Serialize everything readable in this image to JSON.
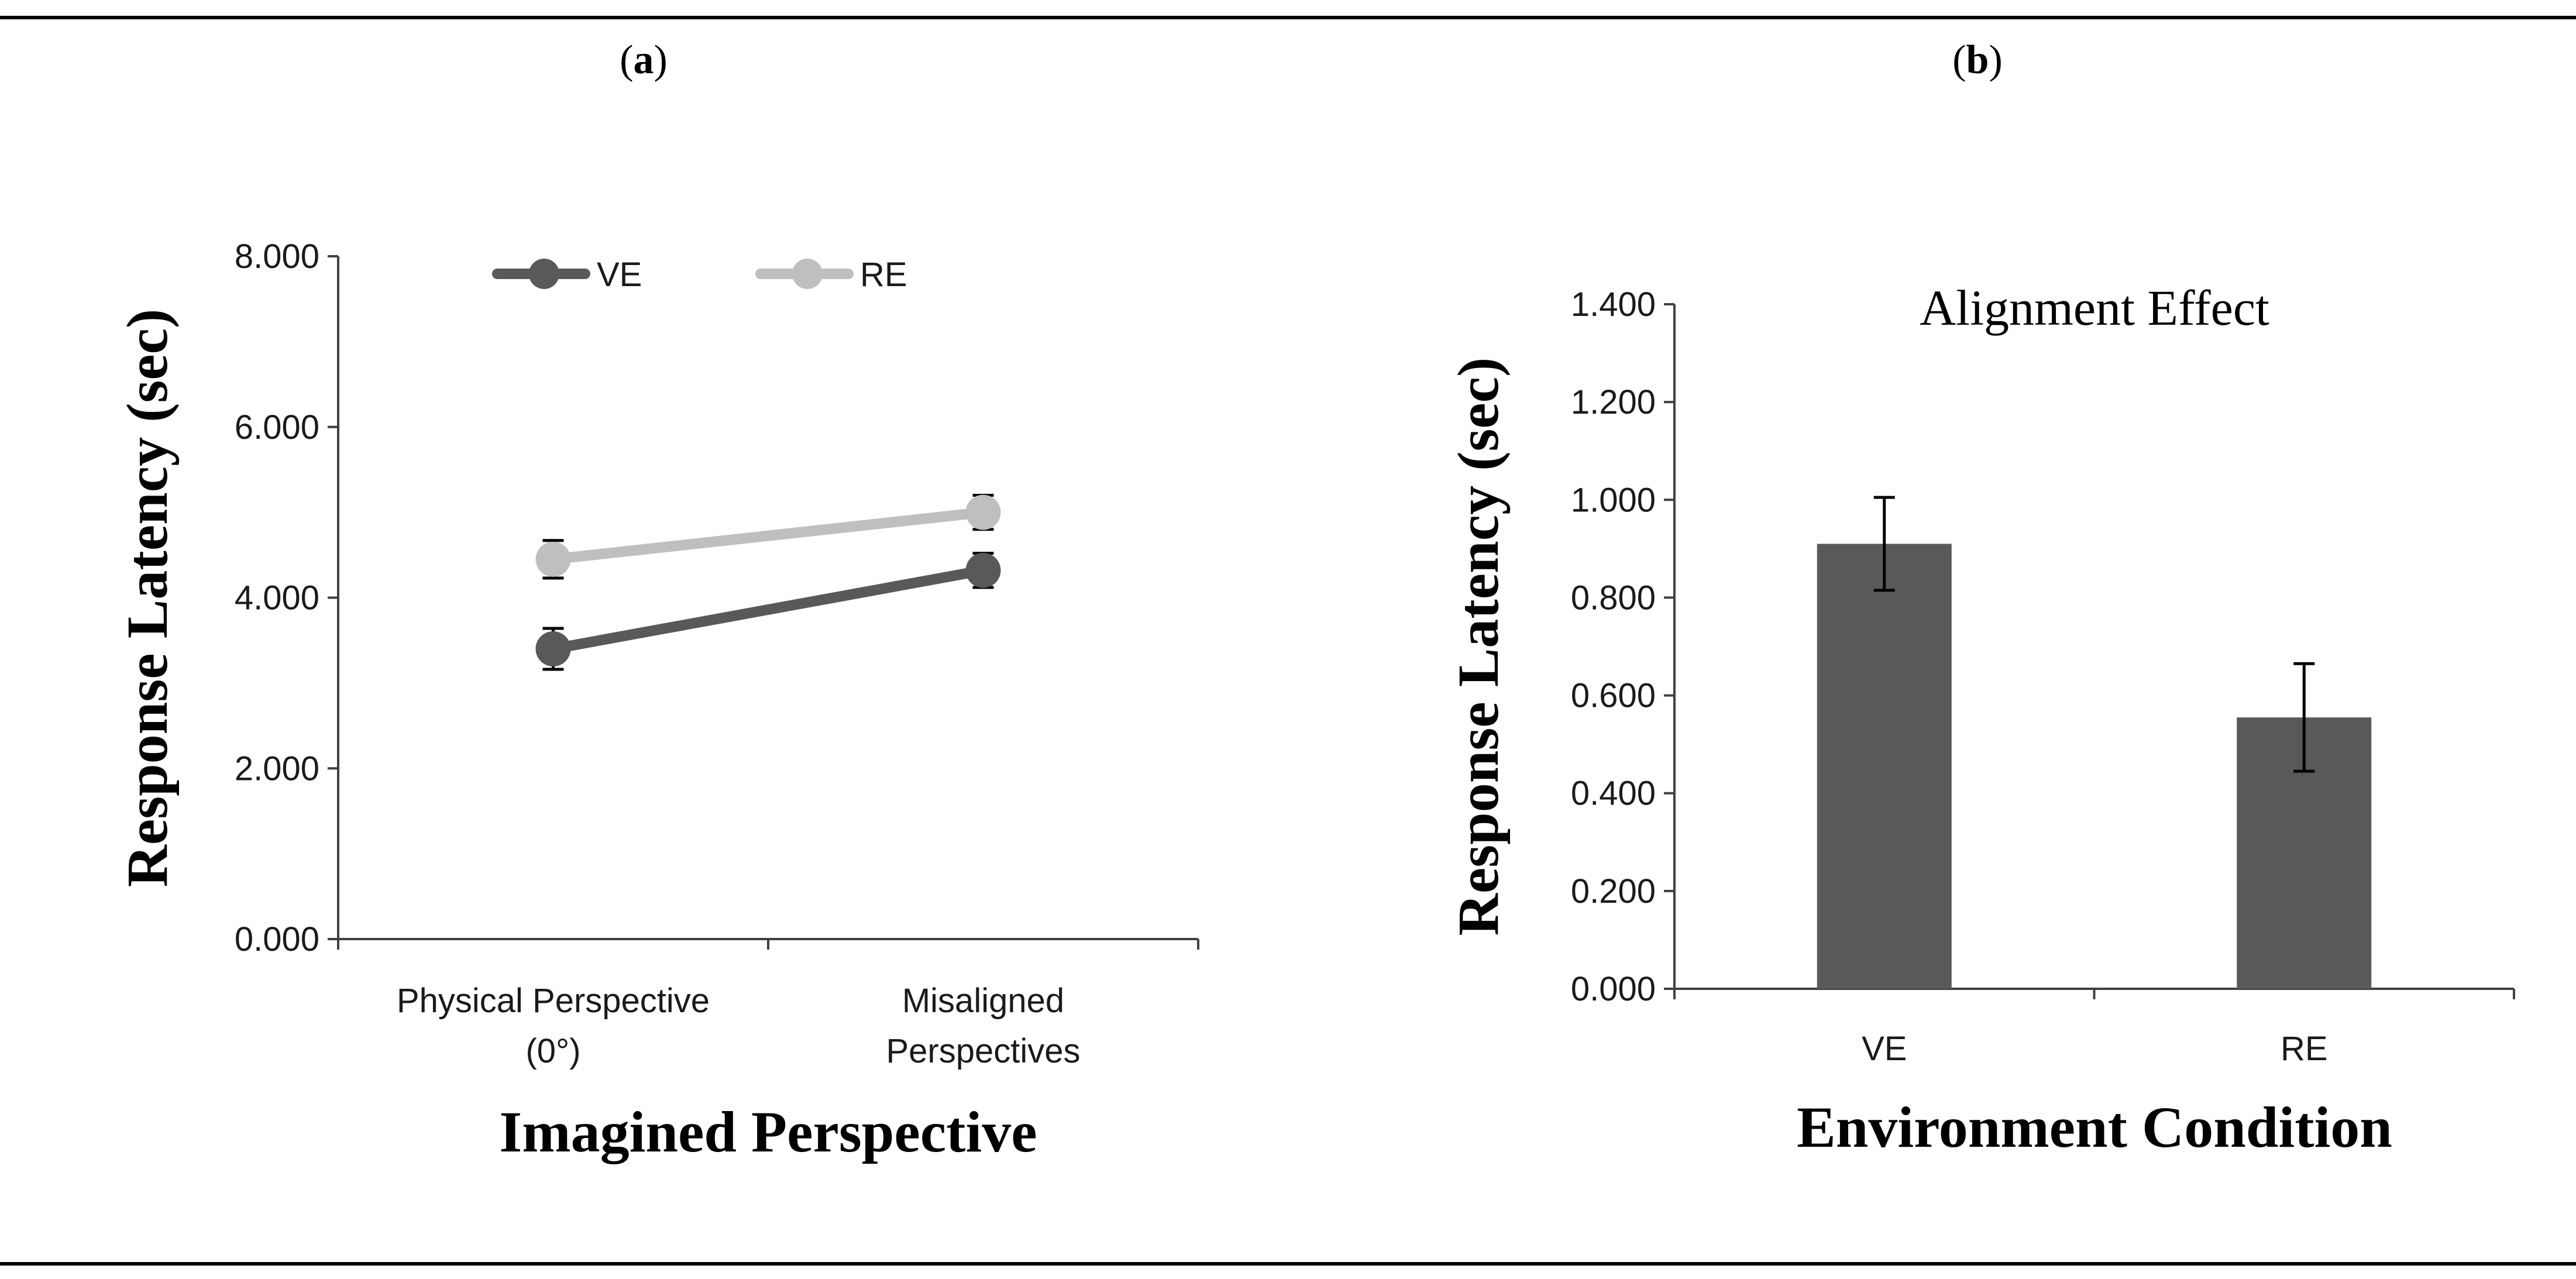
{
  "chart_data": [
    {
      "type": "line",
      "panel_label": "(a)",
      "panel_letter": "a",
      "title": "",
      "xlabel": "Imagined Perspective",
      "ylabel": "Response Latency (sec)",
      "categories": [
        [
          "Physical Perspective",
          "(0°)"
        ],
        [
          "Misaligned",
          "Perspectives"
        ]
      ],
      "ylim": [
        0,
        8
      ],
      "yticks": [
        0,
        2,
        4,
        6,
        8
      ],
      "ytick_labels": [
        "0.000",
        "2.000",
        "4.000",
        "6.000",
        "8.000"
      ],
      "legend_position": "top-left",
      "grid": false,
      "series": [
        {
          "name": "VE",
          "color": "#595959",
          "values": [
            3.4,
            4.32
          ],
          "errors": [
            0.24,
            0.2
          ]
        },
        {
          "name": "RE",
          "color": "#bfbfbf",
          "values": [
            4.45,
            5.0
          ],
          "errors": [
            0.22,
            0.2
          ]
        }
      ]
    },
    {
      "type": "bar",
      "panel_label": "(b)",
      "panel_letter": "b",
      "title": "Alignment Effect",
      "xlabel": "Environment Condition",
      "ylabel": "Response Latency (sec)",
      "categories": [
        "VE",
        "RE"
      ],
      "ylim": [
        0,
        1.4
      ],
      "yticks": [
        0,
        0.2,
        0.4,
        0.6,
        0.8,
        1.0,
        1.2,
        1.4
      ],
      "ytick_labels": [
        "0.000",
        "0.200",
        "0.400",
        "0.600",
        "0.800",
        "1.000",
        "1.200",
        "1.400"
      ],
      "grid": false,
      "bar_color": "#595959",
      "values": [
        0.91,
        0.555
      ],
      "errors": [
        0.095,
        0.11
      ]
    }
  ]
}
